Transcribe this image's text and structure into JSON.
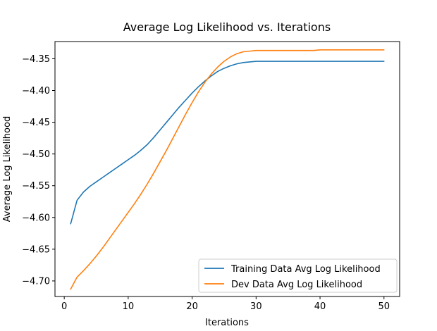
{
  "chart_data": {
    "type": "line",
    "title": "Average Log Likelihood vs. Iterations",
    "xlabel": "Iterations",
    "ylabel": "Average Log Likelihood",
    "xlim": [
      -1.45,
      52.45
    ],
    "ylim": [
      -4.7245,
      -4.3229
    ],
    "xticks": [
      0,
      10,
      20,
      30,
      40,
      50
    ],
    "xtick_labels": [
      "0",
      "10",
      "20",
      "30",
      "40",
      "50"
    ],
    "yticks": [
      -4.35,
      -4.4,
      -4.45,
      -4.5,
      -4.55,
      -4.6,
      -4.65,
      -4.7
    ],
    "ytick_labels": [
      "−4.35",
      "−4.40",
      "−4.45",
      "−4.50",
      "−4.55",
      "−4.60",
      "−4.65",
      "−4.70"
    ],
    "grid": false,
    "legend_position": "lower-right",
    "x": [
      1,
      2,
      3,
      4,
      5,
      6,
      7,
      8,
      9,
      10,
      11,
      12,
      13,
      14,
      15,
      16,
      17,
      18,
      19,
      20,
      21,
      22,
      23,
      24,
      25,
      26,
      27,
      28,
      29,
      30,
      31,
      32,
      33,
      34,
      35,
      36,
      37,
      38,
      39,
      40,
      41,
      42,
      43,
      44,
      45,
      46,
      47,
      48,
      49,
      50
    ],
    "series": [
      {
        "name": "Training Data Avg Log Likelihood",
        "color": "#1f77b4",
        "values": [
          -4.61,
          -4.573,
          -4.56,
          -4.551,
          -4.544,
          -4.537,
          -4.53,
          -4.523,
          -4.516,
          -4.509,
          -4.502,
          -4.494,
          -4.485,
          -4.474,
          -4.462,
          -4.45,
          -4.438,
          -4.426,
          -4.415,
          -4.404,
          -4.394,
          -4.385,
          -4.377,
          -4.37,
          -4.365,
          -4.361,
          -4.358,
          -4.356,
          -4.355,
          -4.354,
          -4.354,
          -4.354,
          -4.354,
          -4.354,
          -4.354,
          -4.354,
          -4.354,
          -4.354,
          -4.354,
          -4.354,
          -4.354,
          -4.354,
          -4.354,
          -4.354,
          -4.354,
          -4.354,
          -4.354,
          -4.354,
          -4.354,
          -4.354
        ]
      },
      {
        "name": "Dev Data Avg Log Likelihood",
        "color": "#ff7f0e",
        "values": [
          -4.713,
          -4.694,
          -4.684,
          -4.673,
          -4.661,
          -4.648,
          -4.634,
          -4.62,
          -4.606,
          -4.592,
          -4.578,
          -4.563,
          -4.547,
          -4.53,
          -4.512,
          -4.494,
          -4.475,
          -4.456,
          -4.437,
          -4.419,
          -4.402,
          -4.387,
          -4.374,
          -4.363,
          -4.354,
          -4.347,
          -4.342,
          -4.339,
          -4.338,
          -4.337,
          -4.337,
          -4.337,
          -4.337,
          -4.337,
          -4.337,
          -4.337,
          -4.337,
          -4.337,
          -4.337,
          -4.336,
          -4.336,
          -4.336,
          -4.336,
          -4.336,
          -4.336,
          -4.336,
          -4.336,
          -4.336,
          -4.336,
          -4.336
        ]
      }
    ]
  }
}
